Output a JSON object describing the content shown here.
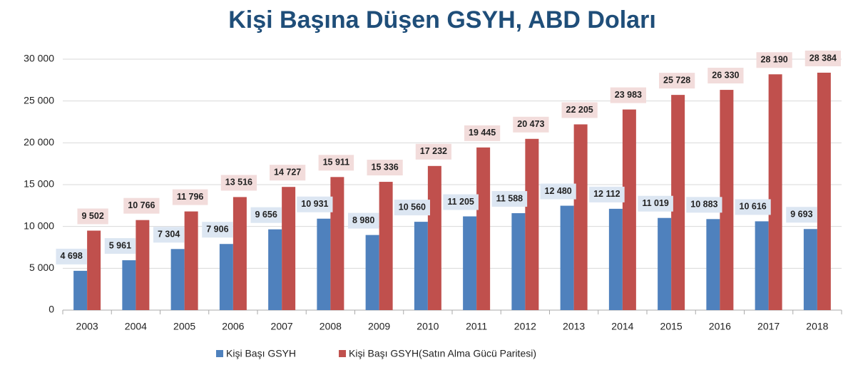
{
  "chart_data": {
    "type": "bar",
    "title": "Kişi Başına Düşen GSYH, ABD Doları",
    "categories": [
      "2003",
      "2004",
      "2005",
      "2006",
      "2007",
      "2008",
      "2009",
      "2010",
      "2011",
      "2012",
      "2013",
      "2014",
      "2015",
      "2016",
      "2017",
      "2018"
    ],
    "series": [
      {
        "name": "Kişi Başı GSYH",
        "color": "#4f81bd",
        "values": [
          4698,
          5961,
          7304,
          7906,
          9656,
          10931,
          8980,
          10560,
          11205,
          11588,
          12480,
          12112,
          11019,
          10883,
          10616,
          9693
        ],
        "value_labels": [
          "4 698",
          "5 961",
          "7 304",
          "7 906",
          "9 656",
          "10 931",
          "8 980",
          "10 560",
          "11 205",
          "11 588",
          "12 480",
          "12 112",
          "11 019",
          "10 883",
          "10 616",
          "9 693"
        ]
      },
      {
        "name": "Kişi Başı GSYH(Satın Alma Gücü Paritesi)",
        "color": "#c0504d",
        "values": [
          9502,
          10766,
          11796,
          13516,
          14727,
          15911,
          15336,
          17232,
          19445,
          20473,
          22205,
          23983,
          25728,
          26330,
          28190,
          28384
        ],
        "value_labels": [
          "9 502",
          "10 766",
          "11 796",
          "13 516",
          "14 727",
          "15 911",
          "15 336",
          "17 232",
          "19 445",
          "20 473",
          "22 205",
          "23 983",
          "25 728",
          "26 330",
          "28 190",
          "28 384"
        ]
      }
    ],
    "ylim": [
      0,
      30000
    ],
    "yticks": [
      0,
      {
        "value": 5000,
        "label": "5 000"
      },
      {
        "value": 10000,
        "label": "10 000"
      },
      {
        "value": 15000,
        "label": "15 000"
      },
      {
        "value": 20000,
        "label": "20 000"
      },
      {
        "value": 25000,
        "label": "25 000"
      },
      {
        "value": 30000,
        "label": "30 000"
      }
    ],
    "grid": true,
    "legend": "bottom"
  }
}
